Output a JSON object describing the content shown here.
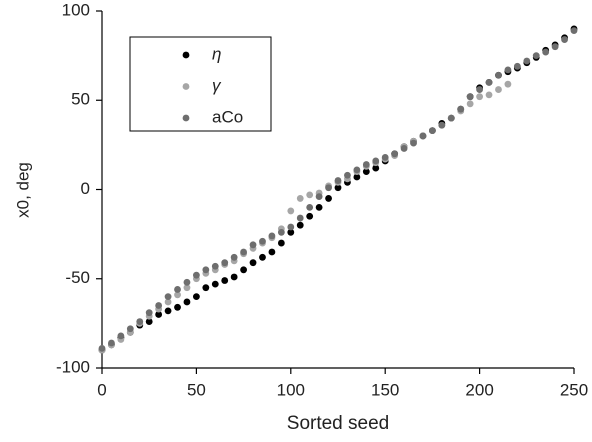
{
  "chart_data": {
    "type": "scatter",
    "xlabel": "Sorted seed",
    "ylabel": "x0, deg",
    "xlim": [
      0,
      250
    ],
    "xticks": [
      0,
      50,
      100,
      150,
      200,
      250
    ],
    "ylim": [
      -100,
      100
    ],
    "yticks": [
      -100,
      -50,
      0,
      50,
      100
    ],
    "series": [
      {
        "name": "η",
        "color": "#000000",
        "x": [
          0,
          5,
          10,
          15,
          20,
          25,
          30,
          35,
          40,
          45,
          50,
          55,
          60,
          65,
          70,
          75,
          80,
          85,
          90,
          95,
          100,
          105,
          110,
          115,
          120,
          125,
          130,
          135,
          140,
          145,
          150,
          155,
          160,
          165,
          170,
          175,
          180,
          185,
          190,
          195,
          200,
          205,
          210,
          215,
          220,
          225,
          230,
          235,
          240,
          245,
          250
        ],
        "values": [
          -90,
          -87,
          -83,
          -80,
          -76,
          -74,
          -70,
          -68,
          -66,
          -63,
          -60,
          -55,
          -53,
          -51,
          -49,
          -45,
          -41,
          -38,
          -35,
          -30,
          -24,
          -20,
          -15,
          -10,
          -5,
          1,
          4,
          7,
          10,
          12,
          16,
          20,
          24,
          27,
          30,
          33,
          37,
          40,
          45,
          52,
          57,
          60,
          64,
          66,
          68,
          71,
          74,
          78,
          81,
          85,
          90
        ]
      },
      {
        "name": "γ",
        "color": "#a6a6a6",
        "x": [
          0,
          5,
          10,
          15,
          20,
          25,
          30,
          35,
          40,
          45,
          50,
          55,
          60,
          65,
          70,
          75,
          80,
          85,
          90,
          95,
          100,
          105,
          110,
          115,
          120,
          125,
          130,
          135,
          140,
          145,
          150,
          155,
          160,
          165,
          170,
          175,
          180,
          185,
          190,
          195,
          200,
          205,
          210,
          215
        ],
        "values": [
          -90,
          -87,
          -84,
          -80,
          -75,
          -71,
          -67,
          -63,
          -59,
          -55,
          -50,
          -47,
          -45,
          -42,
          -40,
          -36,
          -33,
          -30,
          -27,
          -22,
          -12,
          -5,
          -3,
          -2,
          2,
          4,
          6,
          10,
          13,
          15,
          17,
          19,
          24,
          27,
          30,
          33,
          36,
          40,
          44,
          48,
          52,
          53,
          56,
          59
        ]
      },
      {
        "name": "aCo",
        "color": "#6e6e6e",
        "x": [
          0,
          5,
          10,
          15,
          20,
          25,
          30,
          35,
          40,
          45,
          50,
          55,
          60,
          65,
          70,
          75,
          80,
          85,
          90,
          95,
          100,
          105,
          110,
          115,
          120,
          125,
          130,
          135,
          140,
          145,
          150,
          155,
          160,
          165,
          170,
          175,
          180,
          185,
          190,
          195,
          200,
          205,
          210,
          215,
          220,
          225,
          230,
          235,
          240,
          245,
          250
        ],
        "values": [
          -89,
          -86,
          -82,
          -78,
          -74,
          -69,
          -65,
          -60,
          -56,
          -52,
          -48,
          -45,
          -43,
          -41,
          -38,
          -35,
          -31,
          -29,
          -26,
          -24,
          -21,
          -16,
          -10,
          -4,
          1,
          5,
          8,
          11,
          14,
          16,
          18,
          20,
          23,
          26,
          30,
          33,
          36,
          40,
          45,
          52,
          56,
          60,
          64,
          67,
          69,
          72,
          75,
          77,
          80,
          84,
          89
        ]
      }
    ]
  }
}
